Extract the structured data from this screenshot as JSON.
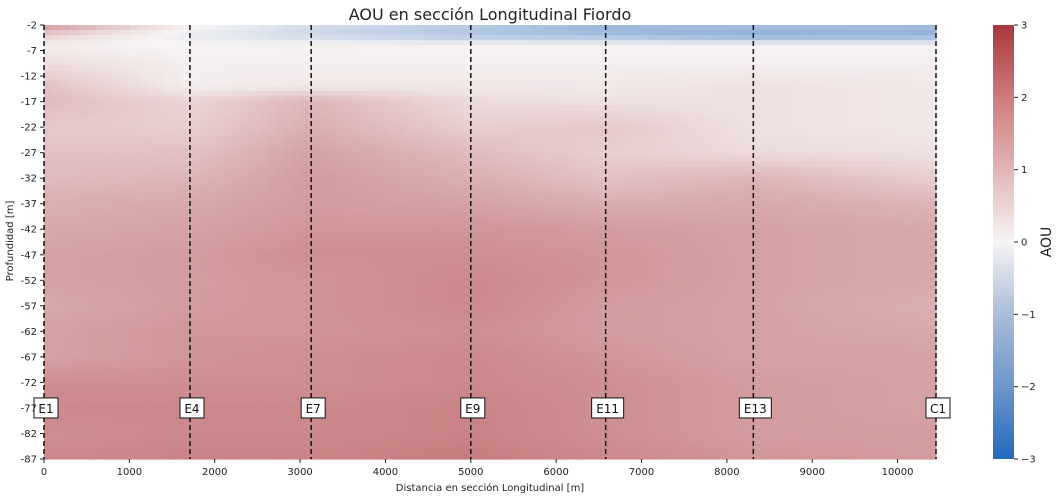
{
  "chart_data": {
    "type": "heatmap",
    "title": "AOU en sección Longitudinal Fiordo",
    "xlabel": "Distancia en sección Longitudinal [m]",
    "ylabel": "Profundidad [m]",
    "x_ticks": [
      0,
      1000,
      2000,
      3000,
      4000,
      5000,
      6000,
      7000,
      8000,
      9000,
      10000
    ],
    "xlim": [
      0,
      10450
    ],
    "y_ticks": [
      -2,
      -7,
      -12,
      -17,
      -22,
      -27,
      -32,
      -37,
      -42,
      -47,
      -52,
      -57,
      -62,
      -67,
      -72,
      -77,
      -82,
      -87
    ],
    "ylim": [
      -87,
      -2
    ],
    "colorbar": {
      "label": "AOU",
      "ticks": [
        -3,
        -2,
        -1,
        0,
        1,
        2,
        3
      ],
      "range": [
        -3,
        3
      ],
      "colormap": "vlag",
      "colors": {
        "low": "#2369bd",
        "mid": "#f7f4f4",
        "high": "#a9373b"
      }
    },
    "stations": [
      {
        "name": "E1",
        "x": 0
      },
      {
        "name": "E4",
        "x": 1710
      },
      {
        "name": "E7",
        "x": 3130
      },
      {
        "name": "E9",
        "x": 5000
      },
      {
        "name": "E11",
        "x": 6580
      },
      {
        "name": "E13",
        "x": 8310
      },
      {
        "name": "C1",
        "x": 10450
      }
    ],
    "profiles_depth": [
      -2,
      -4,
      -6,
      -10,
      -14,
      -17,
      -22,
      -27,
      -32,
      -37,
      -42,
      -47,
      -52,
      -57,
      -62,
      -67,
      -72,
      -77,
      -82,
      -87
    ],
    "profiles": [
      {
        "station": "E1",
        "values": [
          1.5,
          0.6,
          0.1,
          0.4,
          0.8,
          0.9,
          0.7,
          0.8,
          0.9,
          1.1,
          1.2,
          1.3,
          1.3,
          1.2,
          1.3,
          1.3,
          1.6,
          1.7,
          1.6,
          1.7
        ]
      },
      {
        "station": "E4",
        "values": [
          0.1,
          -0.2,
          0.0,
          0.1,
          0.1,
          0.5,
          0.6,
          0.8,
          1.0,
          1.2,
          1.3,
          1.4,
          1.4,
          1.4,
          1.5,
          1.5,
          1.6,
          1.7,
          1.7,
          1.8
        ]
      },
      {
        "station": "E7",
        "values": [
          -0.5,
          -0.6,
          0.05,
          0.1,
          0.2,
          1.0,
          1.1,
          1.3,
          1.4,
          1.4,
          1.5,
          1.6,
          1.5,
          1.5,
          1.5,
          1.6,
          1.6,
          1.7,
          1.7,
          1.8
        ]
      },
      {
        "station": "E9",
        "values": [
          -0.9,
          -1.0,
          0.0,
          0.1,
          0.2,
          0.4,
          0.6,
          0.9,
          1.1,
          1.3,
          1.5,
          1.6,
          1.7,
          1.7,
          1.6,
          1.7,
          1.7,
          1.8,
          1.8,
          1.9
        ]
      },
      {
        "station": "E11",
        "values": [
          -1.3,
          -1.2,
          0.0,
          0.1,
          0.2,
          0.3,
          0.7,
          0.6,
          0.8,
          1.1,
          1.4,
          1.5,
          1.5,
          1.4,
          1.4,
          1.5,
          1.6,
          1.6,
          1.6,
          1.7
        ]
      },
      {
        "station": "E13",
        "values": [
          -1.1,
          -1.5,
          0.0,
          0.1,
          0.3,
          0.3,
          0.3,
          0.4,
          1.0,
          1.2,
          1.3,
          1.3,
          1.3,
          1.3,
          1.3,
          1.3,
          1.4,
          1.4,
          1.4,
          1.5
        ]
      },
      {
        "station": "C1",
        "values": [
          -1.2,
          -1.4,
          0.0,
          0.1,
          0.2,
          0.2,
          0.2,
          0.3,
          0.6,
          1.0,
          1.2,
          1.2,
          1.2,
          1.1,
          1.2,
          1.3,
          1.3,
          1.3,
          1.4,
          1.4
        ]
      }
    ]
  }
}
